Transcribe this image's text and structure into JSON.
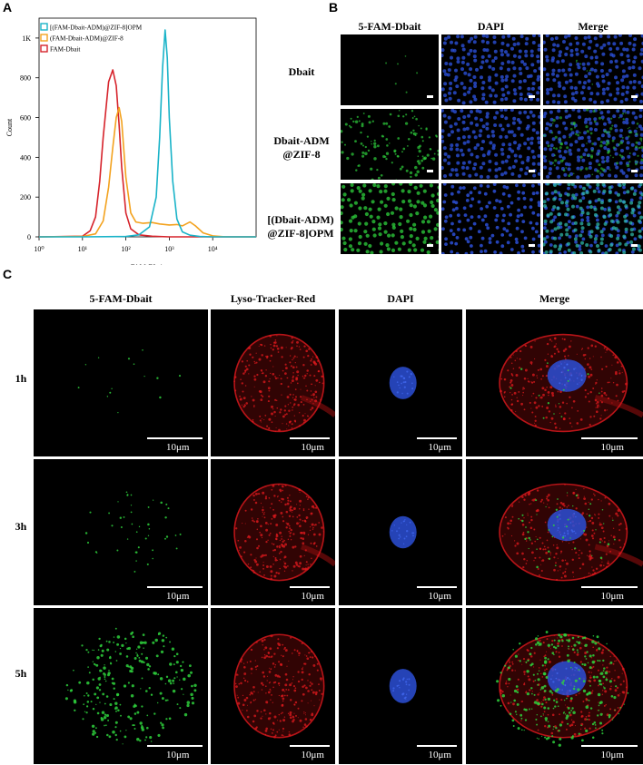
{
  "panel_labels": {
    "a": "A",
    "b": "B",
    "c": "C"
  },
  "panel_b": {
    "col_headers": [
      "5-FAM-Dbait",
      "DAPI",
      "Merge"
    ],
    "row_labels": [
      [
        "Dbait"
      ],
      [
        "Dbait-ADM",
        "@ZIF-8"
      ],
      [
        "[(Dbait-ADM)",
        "@ZIF-8]OPM"
      ]
    ]
  },
  "panel_c": {
    "col_headers": [
      "5-FAM-Dbait",
      "Lyso-Tracker-Red",
      "DAPI",
      "Merge"
    ],
    "row_labels": [
      "1h",
      "3h",
      "5h"
    ],
    "scale_bar": "10μm"
  },
  "colors": {
    "cyan": "#19b3c8",
    "orange": "#f3a21e",
    "red": "#d6232b",
    "green": "#2ed03c",
    "blue": "#2b4fd6",
    "lyso": "#e0191e"
  },
  "chart_data": {
    "type": "line",
    "title": "",
    "xlabel": "FAM-Dbait",
    "ylabel": "Count",
    "x_scale": "log",
    "xlim": [
      1,
      100000
    ],
    "ylim": [
      0,
      1100
    ],
    "x_ticks": [
      1,
      10,
      100,
      1000,
      10000
    ],
    "x_tick_labels": [
      "10⁰",
      "10¹",
      "10²",
      "10³",
      "10⁴"
    ],
    "y_ticks": [
      0,
      200,
      400,
      600,
      800,
      1000
    ],
    "y_tick_labels": [
      "0",
      "200",
      "400",
      "600",
      "800",
      "1K"
    ],
    "legend_placement": "top-left",
    "series": [
      {
        "name": "[(FAM-Dbait-ADM)@ZIF-8]OPM",
        "color": "#19b3c8",
        "x": [
          1,
          10,
          100,
          200,
          350,
          500,
          600,
          700,
          800,
          900,
          1000,
          1200,
          1500,
          2000,
          3000,
          5000,
          10000,
          100000
        ],
        "y": [
          0,
          0,
          2,
          10,
          50,
          200,
          500,
          850,
          1040,
          900,
          600,
          280,
          90,
          25,
          8,
          2,
          0,
          0
        ]
      },
      {
        "name": "(FAM-Dbait-ADM)@ZIF-8",
        "color": "#f3a21e",
        "x": [
          1,
          10,
          20,
          30,
          40,
          50,
          60,
          70,
          80,
          100,
          130,
          170,
          250,
          400,
          600,
          1000,
          1500,
          2000,
          3000,
          4000,
          6000,
          10000,
          20000,
          100000
        ],
        "y": [
          0,
          2,
          15,
          80,
          250,
          450,
          600,
          650,
          580,
          300,
          120,
          75,
          68,
          72,
          65,
          60,
          62,
          55,
          75,
          55,
          20,
          5,
          0,
          0
        ]
      },
      {
        "name": "FAM-Dbait",
        "color": "#d6232b",
        "x": [
          1,
          10,
          15,
          20,
          25,
          30,
          40,
          50,
          60,
          70,
          80,
          100,
          130,
          200,
          400,
          1000,
          100000
        ],
        "y": [
          0,
          3,
          30,
          100,
          280,
          500,
          780,
          840,
          760,
          560,
          350,
          120,
          40,
          10,
          3,
          0,
          0
        ]
      }
    ]
  }
}
